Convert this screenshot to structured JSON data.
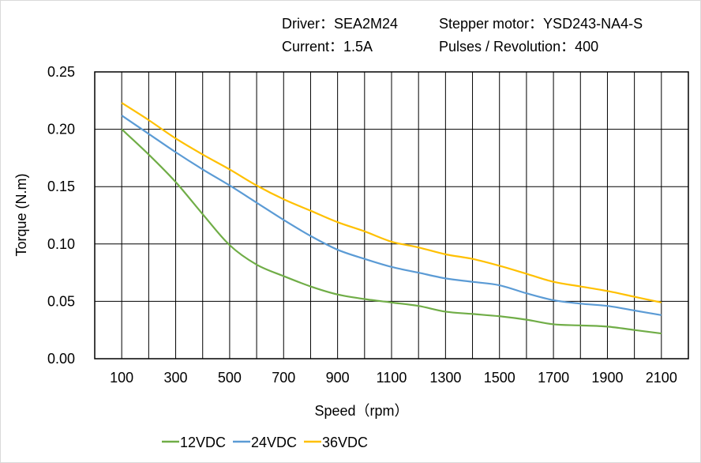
{
  "header": {
    "driver": "Driver：SEA2M24",
    "motor": "Stepper  motor：YSD243-NA4-S",
    "current": "Current：1.5A",
    "pulses": "Pulses / Revolution：400"
  },
  "chart_data": {
    "type": "line",
    "title": "",
    "xlabel": "Speed（rpm）",
    "ylabel": "Torque (N.m)",
    "xlim": [
      0,
      2200
    ],
    "ylim": [
      0,
      0.25
    ],
    "grid": true,
    "legend_position": "bottom",
    "x": [
      100,
      200,
      300,
      400,
      500,
      600,
      700,
      800,
      900,
      1000,
      1100,
      1200,
      1300,
      1400,
      1500,
      1600,
      1700,
      1800,
      1900,
      2000,
      2100
    ],
    "x_tick_labels": [
      "100",
      "300",
      "500",
      "700",
      "900",
      "1100",
      "1300",
      "1500",
      "1700",
      "1900",
      "2100"
    ],
    "y_tick_labels": [
      "0.00",
      "0.05",
      "0.10",
      "0.15",
      "0.20",
      "0.25"
    ],
    "series": [
      {
        "name": "12VDC",
        "color": "#70AD47",
        "values": [
          0.2,
          0.178,
          0.154,
          0.126,
          0.099,
          0.082,
          0.072,
          0.063,
          0.056,
          0.052,
          0.049,
          0.046,
          0.041,
          0.039,
          0.037,
          0.034,
          0.03,
          0.029,
          0.028,
          0.025,
          0.022
        ]
      },
      {
        "name": "24VDC",
        "color": "#5B9BD5",
        "values": [
          0.212,
          0.196,
          0.18,
          0.165,
          0.151,
          0.136,
          0.121,
          0.107,
          0.095,
          0.087,
          0.08,
          0.075,
          0.07,
          0.067,
          0.064,
          0.057,
          0.051,
          0.048,
          0.046,
          0.042,
          0.038
        ]
      },
      {
        "name": "36VDC",
        "color": "#FFC000",
        "values": [
          0.223,
          0.208,
          0.192,
          0.178,
          0.165,
          0.151,
          0.139,
          0.129,
          0.119,
          0.111,
          0.102,
          0.097,
          0.091,
          0.087,
          0.081,
          0.074,
          0.067,
          0.063,
          0.059,
          0.054,
          0.049
        ]
      }
    ]
  }
}
